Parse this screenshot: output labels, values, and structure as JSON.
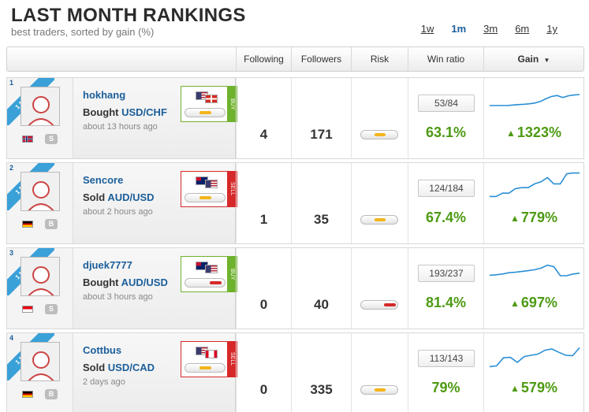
{
  "header": {
    "title": "LAST MONTH RANKINGS",
    "subtitle": "best traders, sorted by gain (%)",
    "periods": [
      {
        "label": "1w",
        "active": false
      },
      {
        "label": "1m",
        "active": true
      },
      {
        "label": "3m",
        "active": false
      },
      {
        "label": "6m",
        "active": false
      },
      {
        "label": "1y",
        "active": false
      }
    ]
  },
  "columns": {
    "following": "Following",
    "followers": "Followers",
    "risk": "Risk",
    "win_ratio": "Win ratio",
    "gain": "Gain"
  },
  "colors": {
    "link_blue": "#1b5e9a",
    "gain_green": "#4d9a13",
    "buy_green": "#6fb22e",
    "sell_red": "#d62828",
    "ribbon_blue": "#3aa0d8",
    "risk_low": "#f3b51c",
    "risk_high": "#d62828",
    "spark_line": "#2a8fd6"
  },
  "traders": [
    {
      "rank": "1",
      "ribbon": "1 MONTH",
      "username": "hokhang",
      "action_verb": "Bought",
      "pair": "USD/CHF",
      "time": "about 13 hours ago",
      "country_flag": "norway-flag",
      "badge": "S",
      "trade_direction": "BUY",
      "flags": [
        "us-flag",
        "swiss-flag"
      ],
      "trade_risk": 0.45,
      "following": "4",
      "followers": "171",
      "risk_level": 0.4,
      "risk_color": "low",
      "win_ratio": "53/84",
      "win_pct": "63.1%",
      "gain": "1323%",
      "spark": [
        0.72,
        0.72,
        0.72,
        0.72,
        0.7,
        0.68,
        0.67,
        0.65,
        0.62,
        0.56,
        0.45,
        0.36,
        0.32,
        0.4,
        0.33,
        0.3,
        0.28
      ]
    },
    {
      "rank": "2",
      "ribbon": "1 MONTH",
      "username": "Sencore",
      "action_verb": "Sold",
      "pair": "AUD/USD",
      "time": "about 2 hours ago",
      "country_flag": "germany-flag",
      "badge": "B",
      "trade_direction": "SELL",
      "flags": [
        "australia-flag",
        "us-flag"
      ],
      "trade_risk": 0.45,
      "following": "1",
      "followers": "35",
      "risk_level": 0.4,
      "risk_color": "low",
      "win_ratio": "124/184",
      "win_pct": "67.4%",
      "gain": "779%",
      "spark": [
        0.95,
        0.95,
        0.82,
        0.82,
        0.64,
        0.6,
        0.6,
        0.45,
        0.37,
        0.2,
        0.45,
        0.45,
        0.05,
        0.02,
        0.02
      ]
    },
    {
      "rank": "3",
      "ribbon": "1 MONTH",
      "username": "djuek7777",
      "action_verb": "Bought",
      "pair": "AUD/USD",
      "time": "about 3 hours ago",
      "country_flag": "indonesia-flag",
      "badge": "S",
      "trade_direction": "BUY",
      "flags": [
        "australia-flag",
        "us-flag"
      ],
      "trade_risk": 0.8,
      "following": "0",
      "followers": "40",
      "risk_level": 0.8,
      "risk_color": "high",
      "win_ratio": "193/237",
      "win_pct": "81.4%",
      "gain": "697%",
      "spark": [
        0.7,
        0.68,
        0.65,
        0.6,
        0.58,
        0.55,
        0.52,
        0.48,
        0.42,
        0.3,
        0.36,
        0.72,
        0.72,
        0.65,
        0.62
      ]
    },
    {
      "rank": "4",
      "ribbon": "1 MONTH",
      "username": "Cottbus",
      "action_verb": "Sold",
      "pair": "USD/CAD",
      "time": "2 days ago",
      "country_flag": "germany-flag",
      "badge": "B",
      "trade_direction": "SELL",
      "flags": [
        "us-flag",
        "canada-flag"
      ],
      "trade_risk": 0.45,
      "following": "0",
      "followers": "335",
      "risk_level": 0.4,
      "risk_color": "low",
      "win_ratio": "113/143",
      "win_pct": "79%",
      "gain": "579%",
      "spark": [
        0.95,
        0.92,
        0.6,
        0.58,
        0.78,
        0.55,
        0.5,
        0.45,
        0.3,
        0.25,
        0.38,
        0.5,
        0.52,
        0.2
      ]
    }
  ]
}
